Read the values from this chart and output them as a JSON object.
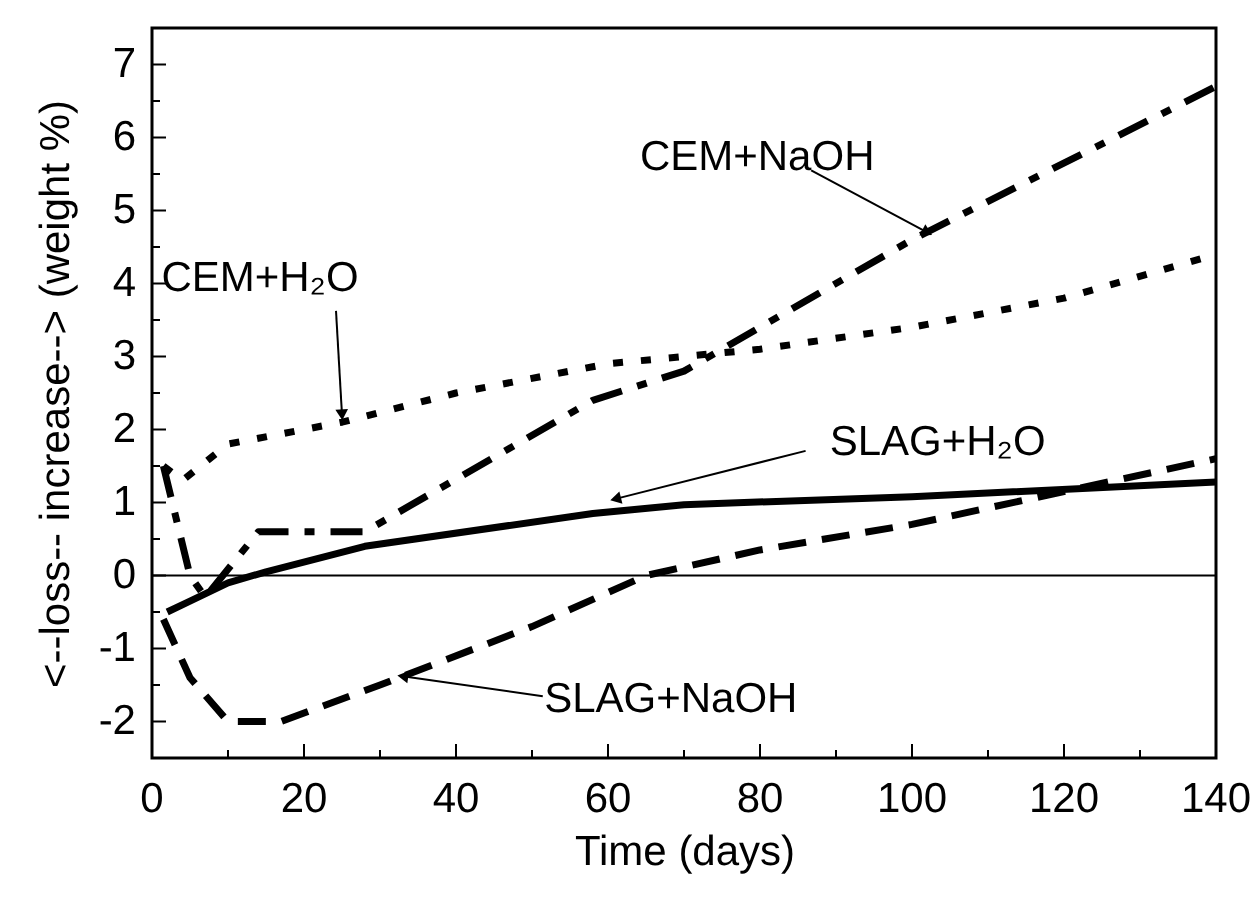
{
  "chart_data": {
    "type": "line",
    "xlabel": "Time (days)",
    "ylabel": "<--loss-- increase--> (weight %)",
    "xlim": [
      0,
      140
    ],
    "ylim": [
      -2.5,
      7.5
    ],
    "xticks": [
      0,
      {
        "value": 10,
        "label": null
      },
      20,
      {
        "value": 30,
        "label": null
      },
      40,
      {
        "value": 50,
        "label": null
      },
      60,
      {
        "value": 70,
        "label": null
      },
      80,
      {
        "value": 90,
        "label": null
      },
      100,
      {
        "value": 110,
        "label": null
      },
      120,
      {
        "value": 130,
        "label": null
      },
      140
    ],
    "yticks": [
      {
        "value": -2.5,
        "label": null
      },
      -2,
      {
        "value": -1.5,
        "label": null
      },
      -1,
      {
        "value": -0.5,
        "label": null
      },
      0,
      {
        "value": 0.5,
        "label": null
      },
      1,
      {
        "value": 1.5,
        "label": null
      },
      2,
      {
        "value": 2.5,
        "label": null
      },
      3,
      {
        "value": 3.5,
        "label": null
      },
      4,
      {
        "value": 4.5,
        "label": null
      },
      5,
      {
        "value": 5.5,
        "label": null
      },
      6,
      {
        "value": 6.5,
        "label": null
      },
      7,
      {
        "value": 7.5,
        "label": null
      }
    ],
    "grid": false,
    "ref_lines": [
      {
        "axis": "y",
        "value": 0,
        "color": "#000000"
      }
    ],
    "series": [
      {
        "color": "#000000",
        "line_style": "dotted",
        "x": [
          1.5,
          4,
          10,
          25,
          40,
          60,
          80,
          100,
          120,
          140
        ],
        "values": [
          1.5,
          1.3,
          1.8,
          2.1,
          2.5,
          2.9,
          3.1,
          3.4,
          3.8,
          4.4
        ]
      },
      {
        "color": "#000000",
        "line_style": "dashdot",
        "x": [
          1.5,
          5,
          7,
          14,
          28,
          58,
          70,
          100,
          140
        ],
        "values": [
          1.5,
          0,
          -0.3,
          0.6,
          0.6,
          2.4,
          2.8,
          4.6,
          6.7
        ]
      },
      {
        "color": "#000000",
        "line_style": "solid",
        "x": [
          2,
          5,
          10,
          15,
          28,
          58,
          70,
          100,
          140
        ],
        "values": [
          -0.5,
          -0.35,
          -0.1,
          0.05,
          0.4,
          0.85,
          0.97,
          1.08,
          1.28
        ]
      },
      {
        "color": "#000000",
        "line_style": "dashed",
        "x": [
          1.5,
          5,
          10,
          17,
          30,
          50,
          65,
          80,
          100,
          120,
          140
        ],
        "values": [
          -0.6,
          -1.4,
          -2,
          -2,
          -1.5,
          -0.7,
          0,
          0.35,
          0.7,
          1.15,
          1.6
        ]
      }
    ],
    "annotations": [
      {
        "text": "CEM+H₂O",
        "x": 25,
        "y": 2.2
      },
      {
        "text": "CEM+NaOH",
        "x": 102,
        "y": 4.7
      },
      {
        "text": "SLAG+H₂O",
        "x": 61,
        "y": 1.05
      },
      {
        "text": "SLAG+NaOH",
        "x": 33,
        "y": -1.38
      }
    ]
  }
}
